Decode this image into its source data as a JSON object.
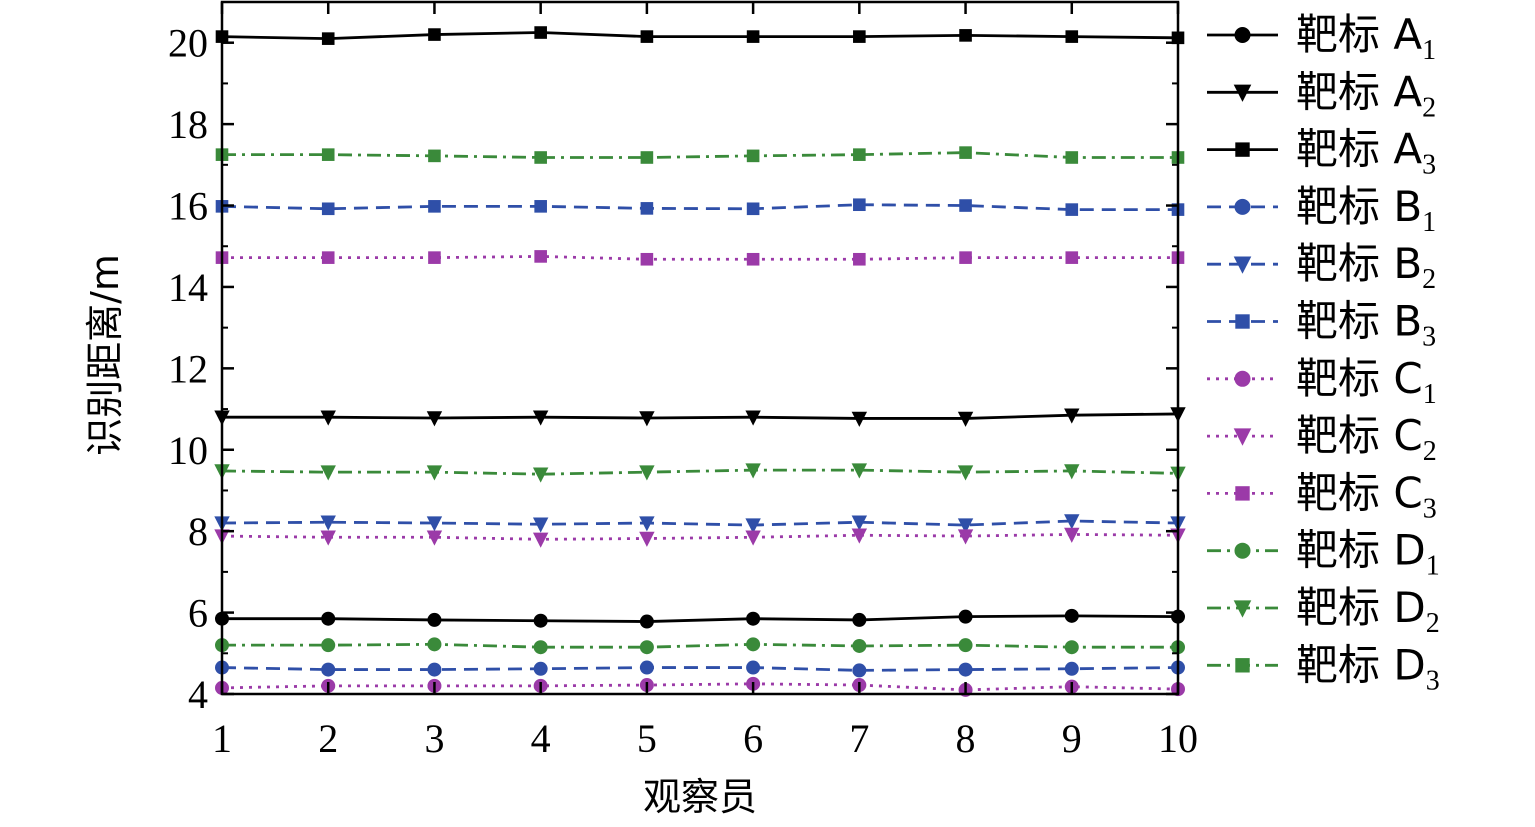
{
  "chart_data": {
    "type": "line",
    "title": "",
    "xlabel": "观察员",
    "ylabel": "识别距离/m",
    "x": [
      1,
      2,
      3,
      4,
      5,
      6,
      7,
      8,
      9,
      10
    ],
    "xlim": [
      1,
      10
    ],
    "ylim": [
      4,
      21
    ],
    "xticks": [
      "1",
      "2",
      "3",
      "4",
      "5",
      "6",
      "7",
      "8",
      "9",
      "10"
    ],
    "yticks": [
      "4",
      "6",
      "8",
      "10",
      "12",
      "14",
      "16",
      "18",
      "20"
    ],
    "ytick_values": [
      4,
      6,
      8,
      10,
      12,
      14,
      16,
      18,
      20
    ],
    "grid": false,
    "legend_position": "right",
    "series": [
      {
        "name_main": "靶标 A",
        "name_sub": "1",
        "color": "#000000",
        "marker": "circle",
        "dash": "solid",
        "values": [
          5.85,
          5.85,
          5.82,
          5.8,
          5.78,
          5.85,
          5.82,
          5.9,
          5.92,
          5.9
        ]
      },
      {
        "name_main": "靶标 A",
        "name_sub": "2",
        "color": "#000000",
        "marker": "triangle",
        "dash": "solid",
        "values": [
          10.8,
          10.8,
          10.78,
          10.8,
          10.78,
          10.8,
          10.77,
          10.77,
          10.85,
          10.88
        ]
      },
      {
        "name_main": "靶标 A",
        "name_sub": "3",
        "color": "#000000",
        "marker": "square",
        "dash": "solid",
        "values": [
          20.15,
          20.1,
          20.2,
          20.25,
          20.15,
          20.15,
          20.15,
          20.18,
          20.15,
          20.12
        ]
      },
      {
        "name_main": "靶标 B",
        "name_sub": "1",
        "color": "#2f4fa8",
        "marker": "circle",
        "dash": "dash",
        "values": [
          4.65,
          4.6,
          4.6,
          4.62,
          4.65,
          4.65,
          4.58,
          4.6,
          4.62,
          4.65
        ]
      },
      {
        "name_main": "靶标 B",
        "name_sub": "2",
        "color": "#2f4fa8",
        "marker": "triangle",
        "dash": "dash",
        "values": [
          8.2,
          8.22,
          8.2,
          8.17,
          8.2,
          8.15,
          8.22,
          8.15,
          8.25,
          8.2
        ]
      },
      {
        "name_main": "靶标 B",
        "name_sub": "3",
        "color": "#2f4fa8",
        "marker": "square",
        "dash": "dash",
        "values": [
          15.98,
          15.92,
          15.98,
          15.98,
          15.93,
          15.92,
          16.02,
          16.0,
          15.9,
          15.9
        ]
      },
      {
        "name_main": "靶标 C",
        "name_sub": "1",
        "color": "#9b3aa8",
        "marker": "circle",
        "dash": "dot",
        "values": [
          4.15,
          4.2,
          4.2,
          4.2,
          4.22,
          4.25,
          4.22,
          4.1,
          4.18,
          4.12
        ]
      },
      {
        "name_main": "靶标 C",
        "name_sub": "2",
        "color": "#9b3aa8",
        "marker": "triangle",
        "dash": "dot",
        "values": [
          7.88,
          7.85,
          7.85,
          7.8,
          7.82,
          7.85,
          7.9,
          7.88,
          7.92,
          7.9
        ]
      },
      {
        "name_main": "靶标 C",
        "name_sub": "3",
        "color": "#9b3aa8",
        "marker": "square",
        "dash": "dot",
        "values": [
          14.72,
          14.72,
          14.72,
          14.75,
          14.68,
          14.68,
          14.68,
          14.72,
          14.72,
          14.72
        ]
      },
      {
        "name_main": "靶标 D",
        "name_sub": "1",
        "color": "#3a8a3a",
        "marker": "circle",
        "dash": "dashdot",
        "values": [
          5.2,
          5.2,
          5.22,
          5.15,
          5.15,
          5.22,
          5.18,
          5.2,
          5.15,
          5.15
        ]
      },
      {
        "name_main": "靶标 D",
        "name_sub": "2",
        "color": "#3a8a3a",
        "marker": "triangle",
        "dash": "dashdot",
        "values": [
          9.48,
          9.45,
          9.45,
          9.4,
          9.45,
          9.5,
          9.5,
          9.45,
          9.48,
          9.42
        ]
      },
      {
        "name_main": "靶标 D",
        "name_sub": "3",
        "color": "#3a8a3a",
        "marker": "square",
        "dash": "dashdot",
        "values": [
          17.25,
          17.25,
          17.22,
          17.18,
          17.18,
          17.22,
          17.25,
          17.3,
          17.18,
          17.18
        ]
      }
    ]
  }
}
